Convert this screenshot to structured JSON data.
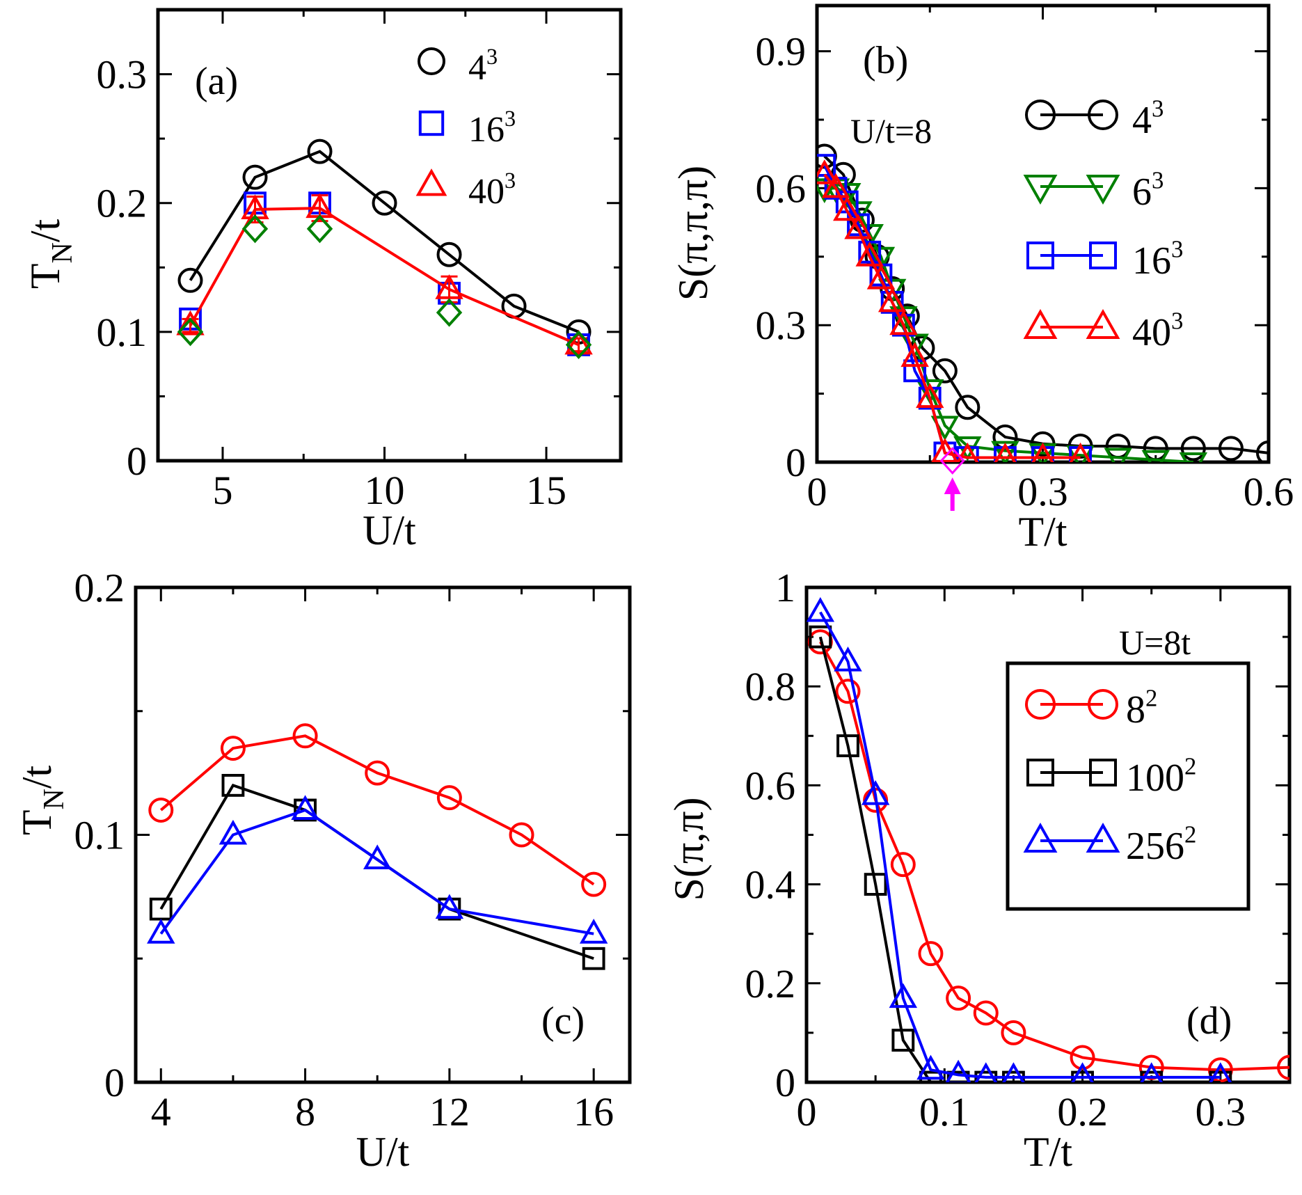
{
  "chart_data": [
    {
      "id": "a",
      "type": "line",
      "panel_label": "(a)",
      "xlabel": "U/t",
      "ylabel": "T_N/t",
      "xlim": [
        3,
        17.3
      ],
      "ylim": [
        0,
        0.35
      ],
      "xticks": [
        5,
        10,
        15
      ],
      "xtick_labels": [
        "5",
        "10",
        "15"
      ],
      "xminor": [
        7.5,
        12.5
      ],
      "yticks": [
        0,
        0.1,
        0.2,
        0.3
      ],
      "ytick_labels": [
        "0",
        "0.1",
        "0.2",
        "0.3"
      ],
      "yminor": [
        0.05,
        0.15,
        0.25
      ],
      "series": [
        {
          "name": "4^3",
          "color": "#000000",
          "marker": "circle",
          "line": true,
          "legend": true,
          "x": [
            4,
            6,
            8,
            10,
            12,
            14,
            16
          ],
          "y": [
            0.14,
            0.22,
            0.24,
            0.2,
            0.16,
            0.12,
            0.1
          ]
        },
        {
          "name": "16^3",
          "color": "#0000ff",
          "marker": "square",
          "line": false,
          "legend": true,
          "x": [
            4,
            6,
            8,
            12,
            16
          ],
          "y": [
            0.11,
            0.2,
            0.2,
            0.13,
            0.09
          ]
        },
        {
          "name": "40^3",
          "color": "#ff0000",
          "marker": "triangle",
          "line": true,
          "legend": true,
          "x": [
            4,
            6,
            8,
            12,
            16
          ],
          "y": [
            0.105,
            0.195,
            0.196,
            0.133,
            0.09
          ],
          "err": [
            0.005,
            0.01,
            0.01,
            0.01,
            0.005
          ]
        },
        {
          "name": "",
          "color": "#008000",
          "marker": "diamond",
          "line": false,
          "legend": false,
          "x": [
            4,
            6,
            8,
            12,
            16
          ],
          "y": [
            0.1,
            0.18,
            0.18,
            0.115,
            0.09
          ]
        }
      ],
      "legend_labels": [
        {
          "base": "4",
          "exp": "3"
        },
        {
          "base": "16",
          "exp": "3"
        },
        {
          "base": "40",
          "exp": "3"
        }
      ]
    },
    {
      "id": "b",
      "type": "line",
      "panel_label": "(b)",
      "annotation": "U/t=8",
      "xlabel": "T/t",
      "ylabel": "S(π,π,π)",
      "xlim": [
        0,
        0.6
      ],
      "ylim": [
        0,
        1.0
      ],
      "xticks": [
        0,
        0.3,
        0.6
      ],
      "xtick_labels": [
        "0",
        "0.3",
        "0.6"
      ],
      "xminor": [
        0.15,
        0.45
      ],
      "yticks": [
        0,
        0.3,
        0.6,
        0.9
      ],
      "ytick_labels": [
        "0",
        "0.3",
        "0.6",
        "0.9"
      ],
      "yminor": [
        0.15,
        0.45,
        0.75
      ],
      "arrow_x": 0.18,
      "arrow_color": "#ff00ff",
      "tc_marker": {
        "x": 0.18,
        "y": 0.0,
        "color": "#ff00ff"
      },
      "series": [
        {
          "name": "4^3",
          "color": "#000000",
          "marker": "circle",
          "line": true,
          "legend": true,
          "x": [
            0.01,
            0.035,
            0.06,
            0.08,
            0.1,
            0.12,
            0.14,
            0.17,
            0.2,
            0.25,
            0.3,
            0.35,
            0.4,
            0.45,
            0.5,
            0.55,
            0.6
          ],
          "y": [
            0.67,
            0.63,
            0.53,
            0.45,
            0.38,
            0.32,
            0.25,
            0.2,
            0.12,
            0.055,
            0.04,
            0.035,
            0.035,
            0.03,
            0.03,
            0.03,
            0.02
          ]
        },
        {
          "name": "6^3",
          "color": "#008000",
          "marker": "triangle-down",
          "line": true,
          "legend": true,
          "x": [
            0.01,
            0.025,
            0.04,
            0.055,
            0.07,
            0.085,
            0.1,
            0.115,
            0.13,
            0.15,
            0.17,
            0.2,
            0.25,
            0.3,
            0.35,
            0.4,
            0.45,
            0.5
          ],
          "y": [
            0.6,
            0.6,
            0.59,
            0.55,
            0.5,
            0.45,
            0.38,
            0.32,
            0.26,
            0.16,
            0.08,
            0.035,
            0.025,
            0.02,
            0.015,
            0.01,
            0.005,
            0.0
          ]
        },
        {
          "name": "16^3",
          "color": "#0000ff",
          "marker": "square",
          "line": true,
          "legend": true,
          "x": [
            0.01,
            0.025,
            0.04,
            0.055,
            0.07,
            0.085,
            0.1,
            0.115,
            0.13,
            0.15,
            0.17,
            0.2,
            0.25,
            0.3,
            0.35
          ],
          "y": [
            0.65,
            0.6,
            0.57,
            0.52,
            0.46,
            0.41,
            0.35,
            0.3,
            0.2,
            0.14,
            0.02,
            0.01,
            0.01,
            0.01,
            0.01
          ]
        },
        {
          "name": "40^3",
          "color": "#ff0000",
          "marker": "triangle",
          "line": true,
          "legend": true,
          "x": [
            0.01,
            0.025,
            0.04,
            0.055,
            0.07,
            0.085,
            0.1,
            0.115,
            0.13,
            0.15,
            0.17,
            0.2,
            0.25,
            0.3,
            0.35
          ],
          "y": [
            0.63,
            0.6,
            0.55,
            0.51,
            0.45,
            0.4,
            0.35,
            0.3,
            0.23,
            0.14,
            0.02,
            0.01,
            0.01,
            0.01,
            0.01
          ]
        }
      ],
      "legend_labels": [
        {
          "base": "4",
          "exp": "3"
        },
        {
          "base": "6",
          "exp": "3"
        },
        {
          "base": "16",
          "exp": "3"
        },
        {
          "base": "40",
          "exp": "3"
        }
      ]
    },
    {
      "id": "c",
      "type": "line",
      "panel_label": "(c)",
      "xlabel": "U/t",
      "ylabel": "T_N/t",
      "xlim": [
        3.3,
        17.0
      ],
      "ylim": [
        0,
        0.2
      ],
      "xticks": [
        4,
        8,
        12,
        16
      ],
      "xtick_labels": [
        "4",
        "8",
        "12",
        "16"
      ],
      "xminor": [
        6,
        10,
        14
      ],
      "yticks": [
        0,
        0.1,
        0.2
      ],
      "ytick_labels": [
        "0",
        "0.1",
        "0.2"
      ],
      "yminor": [
        0.05,
        0.15
      ],
      "series": [
        {
          "name": "",
          "color": "#ff0000",
          "marker": "circle",
          "line": true,
          "legend": false,
          "x": [
            4,
            6,
            8,
            10,
            12,
            14,
            16
          ],
          "y": [
            0.11,
            0.135,
            0.14,
            0.125,
            0.115,
            0.1,
            0.08
          ]
        },
        {
          "name": "",
          "color": "#000000",
          "marker": "square",
          "line": true,
          "legend": false,
          "x": [
            4,
            6,
            8,
            12,
            16
          ],
          "y": [
            0.07,
            0.12,
            0.11,
            0.07,
            0.05
          ]
        },
        {
          "name": "",
          "color": "#0000ff",
          "marker": "triangle",
          "line": true,
          "legend": false,
          "x": [
            4,
            6,
            8,
            10,
            12,
            16
          ],
          "y": [
            0.06,
            0.1,
            0.11,
            0.09,
            0.07,
            0.06
          ]
        }
      ]
    },
    {
      "id": "d",
      "type": "line",
      "panel_label": "(d)",
      "annotation": "U=8t",
      "xlabel": "T/t",
      "ylabel": "S(π,π)",
      "xlim": [
        0,
        0.35
      ],
      "ylim": [
        0,
        1.0
      ],
      "xticks": [
        0,
        0.1,
        0.2,
        0.3
      ],
      "xtick_labels": [
        "0",
        "0.1",
        "0.2",
        "0.3"
      ],
      "xminor": [
        0.05,
        0.15,
        0.25
      ],
      "yticks": [
        0,
        0.2,
        0.4,
        0.6,
        0.8,
        1.0
      ],
      "ytick_labels": [
        "0",
        "0.2",
        "0.4",
        "0.6",
        "0.8",
        "1"
      ],
      "yminor": [
        0.1,
        0.3,
        0.5,
        0.7,
        0.9
      ],
      "series": [
        {
          "name": "8^2",
          "color": "#ff0000",
          "marker": "circle",
          "line": true,
          "legend": true,
          "x": [
            0.01,
            0.03,
            0.05,
            0.07,
            0.09,
            0.11,
            0.13,
            0.15,
            0.2,
            0.25,
            0.3,
            0.35
          ],
          "y": [
            0.89,
            0.79,
            0.57,
            0.44,
            0.26,
            0.17,
            0.14,
            0.1,
            0.05,
            0.03,
            0.025,
            0.03
          ]
        },
        {
          "name": "100^2",
          "color": "#000000",
          "marker": "square",
          "line": true,
          "legend": true,
          "x": [
            0.01,
            0.03,
            0.05,
            0.07,
            0.09,
            0.11,
            0.13,
            0.15,
            0.2,
            0.25,
            0.3
          ],
          "y": [
            0.9,
            0.68,
            0.4,
            0.085,
            0.0,
            0.0,
            0.0,
            0.0,
            0.0,
            0.0,
            0.0
          ]
        },
        {
          "name": "256^2",
          "color": "#0000ff",
          "marker": "triangle",
          "line": true,
          "legend": true,
          "x": [
            0.01,
            0.03,
            0.05,
            0.07,
            0.09,
            0.11,
            0.13,
            0.15,
            0.2,
            0.25,
            0.3
          ],
          "y": [
            0.95,
            0.85,
            0.58,
            0.17,
            0.025,
            0.015,
            0.01,
            0.01,
            0.01,
            0.01,
            0.01
          ]
        }
      ],
      "legend_labels": [
        {
          "base": "8",
          "exp": "2"
        },
        {
          "base": "100",
          "exp": "2"
        },
        {
          "base": "256",
          "exp": "2"
        }
      ]
    }
  ]
}
